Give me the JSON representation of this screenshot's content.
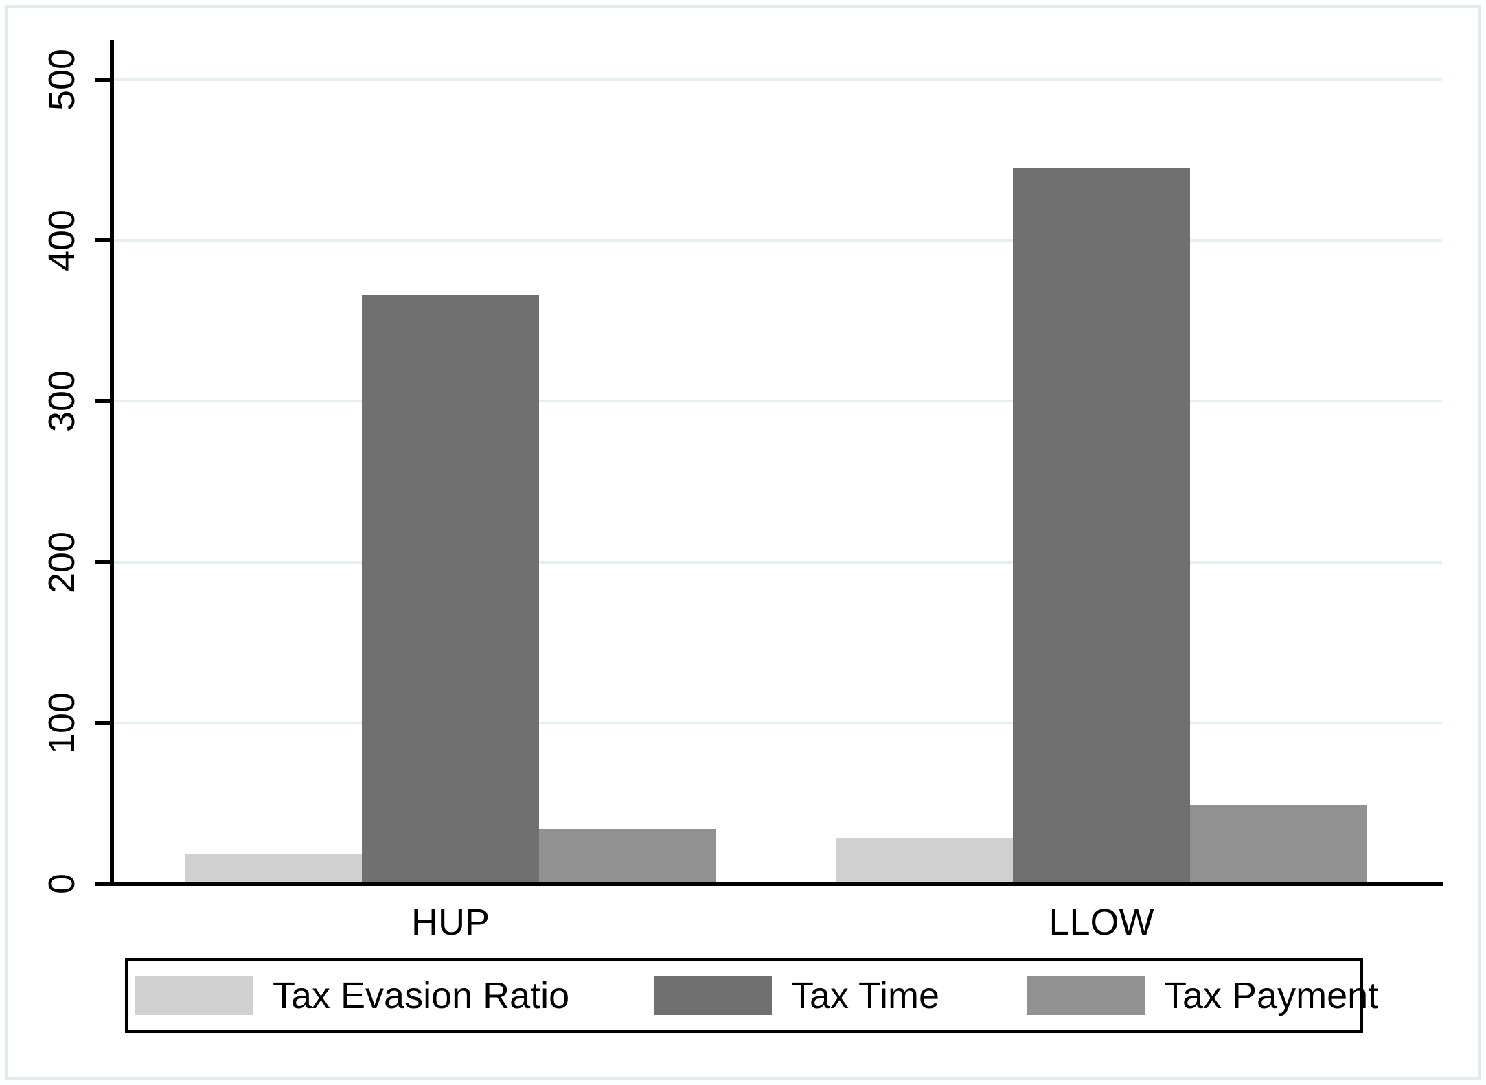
{
  "figure": {
    "background_color": "#ffffff",
    "frame_color": "#dfecea",
    "axis_color": "#000000",
    "text_color": "#000000"
  },
  "chart_data": {
    "type": "bar",
    "categories": [
      "HUP",
      "LLOW"
    ],
    "series": [
      {
        "name": "Tax Evasion Ratio",
        "color": "#d0d0d0",
        "values": [
          17,
          27
        ]
      },
      {
        "name": "Tax Time",
        "color": "#707070",
        "values": [
          365,
          444
        ]
      },
      {
        "name": "Tax Payment",
        "color": "#919191",
        "values": [
          33,
          48
        ]
      }
    ],
    "title": "",
    "xlabel": "",
    "ylabel": "",
    "ylim": [
      0,
      500
    ],
    "yticks": [
      0,
      100,
      200,
      300,
      400,
      500
    ],
    "grid": true,
    "gridline_color": "#e4f0ee",
    "legend_position": "bottom"
  }
}
